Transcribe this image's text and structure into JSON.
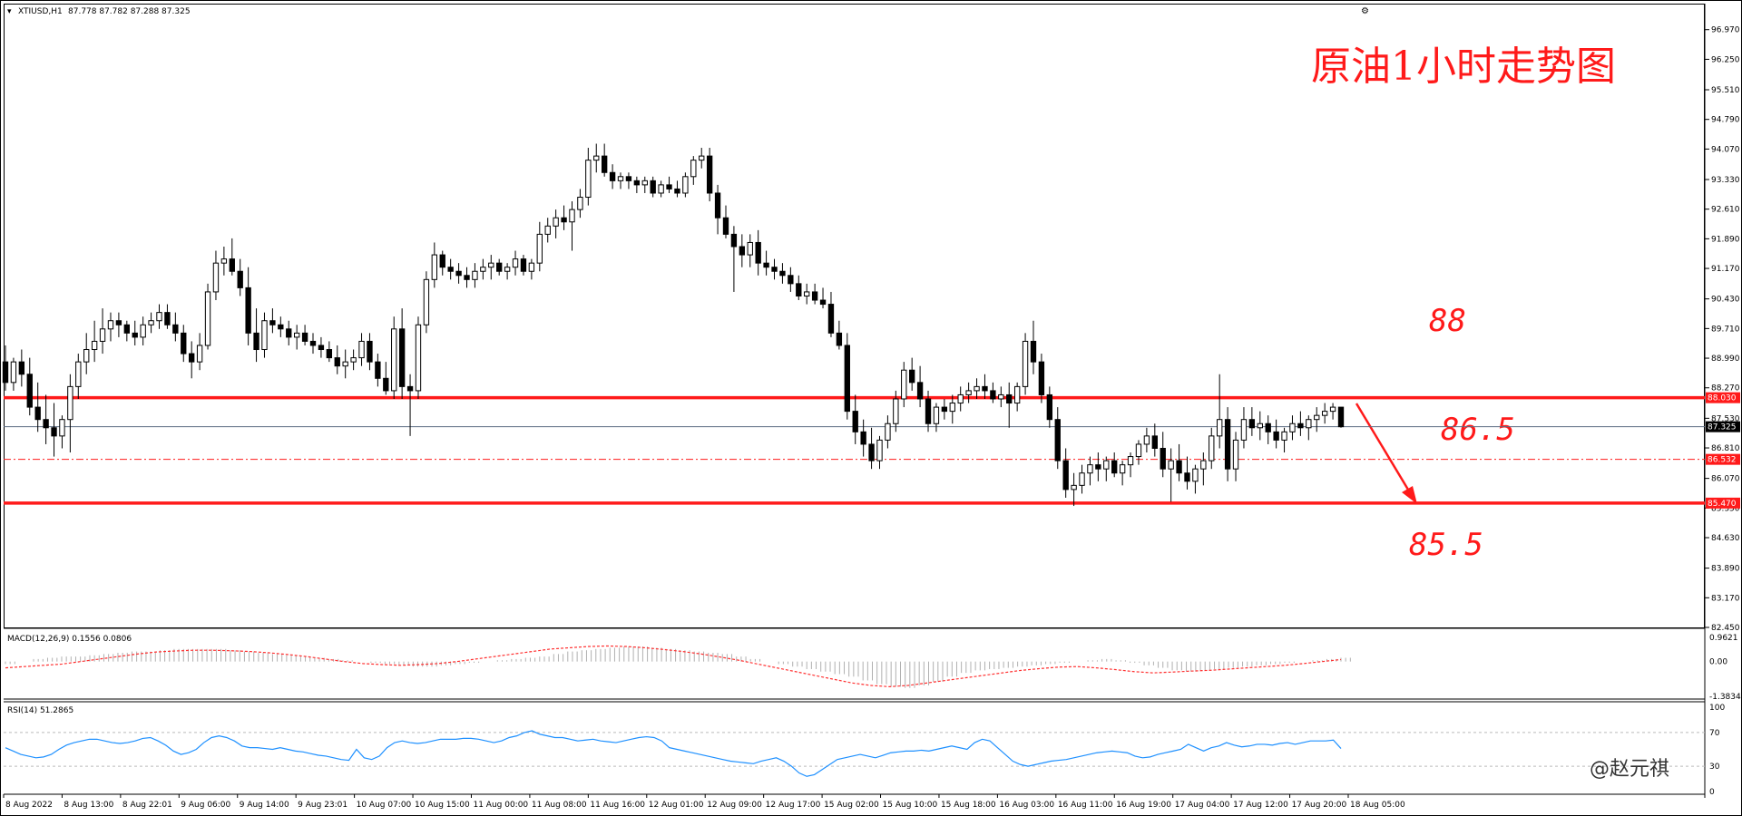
{
  "header": {
    "symbol": "XTIUSD,H1",
    "ohlc": "87.778 87.782 87.288 87.325"
  },
  "title": "原油1小时走势图",
  "annotations": {
    "a88": "88",
    "a865": "86.5",
    "a855": "85.5"
  },
  "watermark": "@赵元祺",
  "colors": {
    "accent": "#ff1a1a",
    "candle": "#000000",
    "macd_signal": "#ff3030",
    "rsi_line": "#1e90ff",
    "price_line": "#5a6a80"
  },
  "chart_data": {
    "type": "candlestick",
    "price_axis": {
      "ticks": [
        "96.970",
        "96.250",
        "95.510",
        "94.790",
        "94.070",
        "93.330",
        "92.610",
        "91.890",
        "91.170",
        "90.430",
        "89.710",
        "88.990",
        "88.270",
        "87.530",
        "86.810",
        "86.070",
        "85.350",
        "84.630",
        "83.890",
        "83.170",
        "82.450"
      ],
      "range": [
        82.45,
        97.25
      ]
    },
    "time_labels": [
      "8 Aug 2022",
      "8 Aug 13:00",
      "8 Aug 22:01",
      "9 Aug 06:00",
      "9 Aug 14:00",
      "9 Aug 23:01",
      "10 Aug 07:00",
      "10 Aug 15:00",
      "11 Aug 00:00",
      "11 Aug 08:00",
      "11 Aug 16:00",
      "12 Aug 01:00",
      "12 Aug 09:00",
      "12 Aug 17:00",
      "15 Aug 02:00",
      "15 Aug 10:00",
      "15 Aug 18:00",
      "16 Aug 03:00",
      "16 Aug 11:00",
      "16 Aug 19:00",
      "17 Aug 04:00",
      "17 Aug 12:00",
      "17 Aug 20:00",
      "18 Aug 05:00"
    ],
    "levels": [
      {
        "value": 88.03,
        "label": "88.030",
        "style": "solid"
      },
      {
        "value": 86.532,
        "label": "86.532",
        "style": "dashdot"
      },
      {
        "value": 85.47,
        "label": "85.470",
        "style": "solid"
      }
    ],
    "current_price": {
      "value": 87.325,
      "label": "87.325"
    },
    "candles": [
      [
        88.9,
        89.3,
        88.2,
        88.4
      ],
      [
        88.4,
        89.0,
        88.2,
        88.9
      ],
      [
        88.9,
        89.2,
        88.3,
        88.6
      ],
      [
        88.6,
        89.0,
        87.6,
        87.8
      ],
      [
        87.8,
        88.4,
        87.2,
        87.5
      ],
      [
        87.5,
        88.1,
        86.9,
        87.3
      ],
      [
        87.3,
        87.9,
        86.6,
        87.1
      ],
      [
        87.1,
        87.6,
        86.8,
        87.5
      ],
      [
        87.5,
        88.6,
        86.7,
        88.3
      ],
      [
        88.3,
        89.1,
        88.0,
        88.9
      ],
      [
        88.9,
        89.6,
        88.6,
        89.2
      ],
      [
        89.2,
        89.9,
        88.9,
        89.4
      ],
      [
        89.4,
        90.2,
        89.1,
        89.7
      ],
      [
        89.7,
        90.1,
        89.4,
        89.9
      ],
      [
        89.9,
        90.1,
        89.5,
        89.8
      ],
      [
        89.8,
        89.9,
        89.4,
        89.6
      ],
      [
        89.6,
        89.9,
        89.3,
        89.5
      ],
      [
        89.5,
        90.0,
        89.3,
        89.8
      ],
      [
        89.8,
        90.1,
        89.6,
        89.9
      ],
      [
        89.9,
        90.3,
        89.7,
        90.1
      ],
      [
        90.1,
        90.3,
        89.7,
        89.8
      ],
      [
        89.8,
        90.1,
        89.4,
        89.6
      ],
      [
        89.6,
        89.8,
        88.9,
        89.1
      ],
      [
        89.1,
        89.4,
        88.5,
        88.9
      ],
      [
        88.9,
        89.6,
        88.7,
        89.3
      ],
      [
        89.3,
        90.8,
        89.2,
        90.6
      ],
      [
        90.6,
        91.6,
        90.4,
        91.3
      ],
      [
        91.3,
        91.7,
        91.0,
        91.4
      ],
      [
        91.4,
        91.9,
        91.0,
        91.1
      ],
      [
        91.1,
        91.4,
        90.5,
        90.7
      ],
      [
        90.7,
        91.2,
        89.3,
        89.6
      ],
      [
        89.6,
        90.2,
        88.9,
        89.2
      ],
      [
        89.2,
        90.1,
        89.0,
        89.9
      ],
      [
        89.9,
        90.2,
        89.6,
        89.8
      ],
      [
        89.8,
        90.0,
        89.5,
        89.7
      ],
      [
        89.7,
        89.9,
        89.3,
        89.5
      ],
      [
        89.5,
        89.8,
        89.2,
        89.6
      ],
      [
        89.6,
        89.8,
        89.3,
        89.4
      ],
      [
        89.4,
        89.6,
        89.1,
        89.3
      ],
      [
        89.3,
        89.5,
        89.0,
        89.2
      ],
      [
        89.2,
        89.4,
        88.9,
        89.0
      ],
      [
        89.0,
        89.3,
        88.6,
        88.8
      ],
      [
        88.8,
        89.2,
        88.5,
        88.9
      ],
      [
        88.9,
        89.2,
        88.7,
        89.0
      ],
      [
        89.0,
        89.6,
        88.8,
        89.4
      ],
      [
        89.4,
        89.6,
        88.7,
        88.9
      ],
      [
        88.9,
        89.1,
        88.3,
        88.5
      ],
      [
        88.5,
        88.9,
        88.1,
        88.2
      ],
      [
        88.2,
        90.0,
        88.0,
        89.7
      ],
      [
        89.7,
        90.2,
        88.0,
        88.3
      ],
      [
        88.3,
        88.6,
        87.1,
        88.2
      ],
      [
        88.2,
        90.0,
        88.0,
        89.8
      ],
      [
        89.8,
        91.1,
        89.6,
        90.9
      ],
      [
        90.9,
        91.8,
        90.7,
        91.5
      ],
      [
        91.5,
        91.6,
        91.0,
        91.2
      ],
      [
        91.2,
        91.4,
        90.9,
        91.1
      ],
      [
        91.1,
        91.3,
        90.8,
        91.0
      ],
      [
        91.0,
        91.2,
        90.7,
        90.9
      ],
      [
        90.9,
        91.3,
        90.7,
        91.1
      ],
      [
        91.1,
        91.4,
        90.9,
        91.2
      ],
      [
        91.2,
        91.5,
        90.9,
        91.3
      ],
      [
        91.3,
        91.4,
        91.0,
        91.1
      ],
      [
        91.1,
        91.3,
        90.9,
        91.2
      ],
      [
        91.2,
        91.6,
        91.0,
        91.4
      ],
      [
        91.4,
        91.5,
        91.0,
        91.1
      ],
      [
        91.1,
        91.4,
        90.9,
        91.3
      ],
      [
        91.3,
        92.3,
        91.1,
        92.0
      ],
      [
        92.0,
        92.4,
        91.8,
        92.2
      ],
      [
        92.2,
        92.6,
        91.9,
        92.4
      ],
      [
        92.4,
        92.7,
        92.1,
        92.3
      ],
      [
        92.3,
        92.8,
        91.6,
        92.6
      ],
      [
        92.6,
        93.1,
        92.4,
        92.9
      ],
      [
        92.9,
        94.1,
        92.7,
        93.8
      ],
      [
        93.8,
        94.2,
        93.5,
        93.9
      ],
      [
        93.9,
        94.2,
        93.4,
        93.5
      ],
      [
        93.5,
        93.7,
        93.1,
        93.3
      ],
      [
        93.3,
        93.5,
        93.1,
        93.4
      ],
      [
        93.4,
        93.5,
        93.1,
        93.3
      ],
      [
        93.3,
        93.4,
        93.0,
        93.2
      ],
      [
        93.2,
        93.4,
        93.0,
        93.3
      ],
      [
        93.3,
        93.4,
        92.9,
        93.0
      ],
      [
        93.0,
        93.3,
        92.9,
        93.2
      ],
      [
        93.2,
        93.4,
        93.0,
        93.1
      ],
      [
        93.1,
        93.3,
        92.9,
        93.0
      ],
      [
        93.0,
        93.5,
        92.9,
        93.4
      ],
      [
        93.4,
        93.9,
        93.2,
        93.8
      ],
      [
        93.8,
        94.1,
        93.6,
        93.9
      ],
      [
        93.9,
        94.1,
        92.8,
        93.0
      ],
      [
        93.0,
        93.2,
        92.0,
        92.4
      ],
      [
        92.4,
        92.7,
        91.9,
        92.0
      ],
      [
        92.0,
        92.2,
        90.6,
        91.7
      ],
      [
        91.7,
        92.0,
        91.2,
        91.5
      ],
      [
        91.5,
        92.0,
        91.2,
        91.8
      ],
      [
        91.8,
        92.1,
        91.0,
        91.3
      ],
      [
        91.3,
        91.6,
        91.0,
        91.2
      ],
      [
        91.2,
        91.4,
        90.9,
        91.1
      ],
      [
        91.1,
        91.3,
        90.8,
        91.0
      ],
      [
        91.0,
        91.2,
        90.6,
        90.8
      ],
      [
        90.8,
        91.0,
        90.4,
        90.5
      ],
      [
        90.5,
        90.8,
        90.3,
        90.6
      ],
      [
        90.6,
        90.8,
        90.3,
        90.4
      ],
      [
        90.4,
        90.7,
        90.2,
        90.3
      ],
      [
        90.3,
        90.6,
        89.5,
        89.6
      ],
      [
        89.6,
        89.9,
        89.2,
        89.3
      ],
      [
        89.3,
        89.6,
        87.5,
        87.7
      ],
      [
        87.7,
        88.1,
        86.9,
        87.2
      ],
      [
        87.2,
        87.5,
        86.6,
        86.9
      ],
      [
        86.9,
        87.3,
        86.3,
        86.5
      ],
      [
        86.5,
        87.1,
        86.3,
        87.0
      ],
      [
        87.0,
        87.6,
        86.8,
        87.4
      ],
      [
        87.4,
        88.2,
        87.2,
        88.0
      ],
      [
        88.0,
        88.9,
        87.8,
        88.7
      ],
      [
        88.7,
        89.0,
        88.2,
        88.4
      ],
      [
        88.4,
        88.8,
        87.8,
        88.0
      ],
      [
        88.0,
        88.2,
        87.2,
        87.4
      ],
      [
        87.4,
        87.9,
        87.2,
        87.8
      ],
      [
        87.8,
        88.0,
        87.5,
        87.7
      ],
      [
        87.7,
        88.1,
        87.4,
        87.9
      ],
      [
        87.9,
        88.3,
        87.7,
        88.1
      ],
      [
        88.1,
        88.4,
        87.9,
        88.2
      ],
      [
        88.2,
        88.5,
        88.0,
        88.3
      ],
      [
        88.3,
        88.6,
        88.0,
        88.2
      ],
      [
        88.2,
        88.4,
        87.9,
        88.0
      ],
      [
        88.0,
        88.3,
        87.8,
        88.1
      ],
      [
        88.1,
        88.4,
        87.3,
        87.9
      ],
      [
        87.9,
        88.4,
        87.7,
        88.3
      ],
      [
        88.3,
        89.6,
        88.1,
        89.4
      ],
      [
        89.4,
        89.9,
        88.6,
        88.9
      ],
      [
        88.9,
        89.1,
        87.9,
        88.1
      ],
      [
        88.1,
        88.3,
        87.3,
        87.5
      ],
      [
        87.5,
        87.8,
        86.3,
        86.5
      ],
      [
        86.5,
        86.8,
        85.6,
        85.8
      ],
      [
        85.8,
        86.2,
        85.4,
        85.9
      ],
      [
        85.9,
        86.4,
        85.7,
        86.2
      ],
      [
        86.2,
        86.6,
        85.9,
        86.4
      ],
      [
        86.4,
        86.7,
        86.0,
        86.3
      ],
      [
        86.3,
        86.6,
        86.0,
        86.5
      ],
      [
        86.5,
        86.7,
        86.1,
        86.2
      ],
      [
        86.2,
        86.5,
        85.9,
        86.4
      ],
      [
        86.4,
        86.7,
        86.1,
        86.6
      ],
      [
        86.6,
        87.0,
        86.4,
        86.9
      ],
      [
        86.9,
        87.3,
        86.7,
        87.1
      ],
      [
        87.1,
        87.4,
        86.6,
        86.8
      ],
      [
        86.8,
        87.2,
        86.1,
        86.3
      ],
      [
        86.3,
        86.8,
        85.5,
        86.5
      ],
      [
        86.5,
        86.9,
        86.0,
        86.2
      ],
      [
        86.2,
        86.6,
        85.8,
        86.0
      ],
      [
        86.0,
        86.4,
        85.7,
        86.3
      ],
      [
        86.3,
        86.7,
        85.9,
        86.5
      ],
      [
        86.5,
        87.3,
        86.3,
        87.1
      ],
      [
        87.1,
        88.6,
        86.8,
        87.5
      ],
      [
        87.5,
        87.8,
        86.0,
        86.3
      ],
      [
        86.3,
        87.2,
        86.0,
        87.0
      ],
      [
        87.0,
        87.8,
        86.8,
        87.5
      ],
      [
        87.5,
        87.8,
        87.1,
        87.3
      ],
      [
        87.3,
        87.7,
        87.0,
        87.4
      ],
      [
        87.4,
        87.6,
        86.9,
        87.2
      ],
      [
        87.2,
        87.5,
        86.8,
        87.0
      ],
      [
        87.0,
        87.3,
        86.7,
        87.2
      ],
      [
        87.2,
        87.6,
        87.0,
        87.4
      ],
      [
        87.4,
        87.7,
        87.1,
        87.3
      ],
      [
        87.3,
        87.6,
        87.0,
        87.5
      ],
      [
        87.5,
        87.8,
        87.2,
        87.6
      ],
      [
        87.6,
        87.9,
        87.4,
        87.7
      ],
      [
        87.7,
        87.9,
        87.5,
        87.8
      ],
      [
        87.8,
        87.8,
        87.3,
        87.325
      ]
    ],
    "macd": {
      "label": "MACD(12,26,9) 0.1556 0.0806",
      "ticks": [
        "0.9621",
        "0.00",
        "-1.3834"
      ],
      "range": [
        -1.3834,
        0.9621
      ],
      "histogram": [
        -0.1,
        0.0,
        0.1,
        0.15,
        0.2,
        0.2,
        0.25,
        0.3,
        0.35,
        0.4,
        0.4,
        0.45,
        0.5,
        0.5,
        0.5,
        0.5,
        0.45,
        0.4,
        0.35,
        0.3,
        0.25,
        0.2,
        0.15,
        0.1,
        0.05,
        0.0,
        -0.05,
        -0.1,
        -0.15,
        -0.2,
        -0.2,
        -0.15,
        -0.1,
        -0.05,
        0.0,
        0.05,
        0.1,
        0.15,
        0.2,
        0.3,
        0.4,
        0.45,
        0.5,
        0.55,
        0.6,
        0.6,
        0.55,
        0.5,
        0.45,
        0.4,
        0.35,
        0.3,
        0.2,
        0.1,
        0.0,
        -0.1,
        -0.2,
        -0.3,
        -0.4,
        -0.5,
        -0.6,
        -0.75,
        -0.9,
        -1.0,
        -1.05,
        -0.95,
        -0.8,
        -0.6,
        -0.45,
        -0.35,
        -0.3,
        -0.25,
        -0.2,
        -0.15,
        -0.1,
        -0.05,
        0.0,
        0.05,
        0.1,
        0.05,
        -0.05,
        -0.15,
        -0.25,
        -0.35,
        -0.4,
        -0.35,
        -0.3,
        -0.25,
        -0.2,
        -0.15,
        -0.1,
        -0.05,
        0.0,
        0.05,
        0.1,
        0.15
      ],
      "signal": [
        -0.25,
        -0.2,
        -0.15,
        -0.1,
        0.0,
        0.1,
        0.2,
        0.3,
        0.38,
        0.42,
        0.45,
        0.45,
        0.43,
        0.4,
        0.35,
        0.28,
        0.2,
        0.1,
        0.0,
        -0.08,
        -0.12,
        -0.15,
        -0.12,
        -0.08,
        0.0,
        0.1,
        0.2,
        0.3,
        0.4,
        0.5,
        0.55,
        0.6,
        0.62,
        0.6,
        0.55,
        0.48,
        0.4,
        0.3,
        0.18,
        0.05,
        -0.1,
        -0.25,
        -0.4,
        -0.55,
        -0.7,
        -0.85,
        -0.95,
        -1.0,
        -0.95,
        -0.85,
        -0.75,
        -0.65,
        -0.55,
        -0.45,
        -0.35,
        -0.28,
        -0.22,
        -0.2,
        -0.25,
        -0.32,
        -0.4,
        -0.45,
        -0.42,
        -0.38,
        -0.35,
        -0.3,
        -0.25,
        -0.2,
        -0.15,
        -0.08,
        0.0,
        0.08
      ]
    },
    "rsi": {
      "label": "RSI(14) 51.2865",
      "ticks": [
        "100",
        "70",
        "30",
        "0"
      ],
      "range": [
        0,
        100
      ],
      "values": [
        52,
        48,
        44,
        42,
        40,
        41,
        44,
        50,
        55,
        58,
        60,
        62,
        62,
        60,
        58,
        57,
        58,
        60,
        63,
        64,
        60,
        55,
        48,
        44,
        46,
        50,
        58,
        64,
        66,
        64,
        60,
        54,
        52,
        52,
        51,
        50,
        52,
        50,
        48,
        47,
        45,
        43,
        42,
        40,
        38,
        37,
        50,
        40,
        38,
        42,
        52,
        58,
        60,
        58,
        57,
        58,
        60,
        62,
        62,
        62,
        63,
        63,
        62,
        60,
        58,
        60,
        64,
        66,
        70,
        72,
        68,
        66,
        64,
        64,
        62,
        60,
        61,
        62,
        60,
        59,
        58,
        60,
        62,
        64,
        65,
        64,
        60,
        52,
        50,
        48,
        46,
        44,
        42,
        40,
        38,
        36,
        35,
        34,
        33,
        36,
        38,
        40,
        36,
        30,
        22,
        18,
        20,
        26,
        32,
        38,
        40,
        42,
        44,
        42,
        40,
        43,
        46,
        47,
        48,
        48,
        49,
        48,
        50,
        52,
        54,
        52,
        50,
        58,
        62,
        60,
        52,
        44,
        36,
        32,
        30,
        32,
        34,
        36,
        37,
        38,
        40,
        42,
        44,
        46,
        47,
        48,
        47,
        46,
        42,
        40,
        41,
        44,
        46,
        48,
        50,
        56,
        52,
        48,
        52,
        54,
        58,
        55,
        53,
        54,
        56,
        56,
        55,
        57,
        58,
        56,
        58,
        60,
        60,
        60,
        61,
        51
      ]
    }
  }
}
